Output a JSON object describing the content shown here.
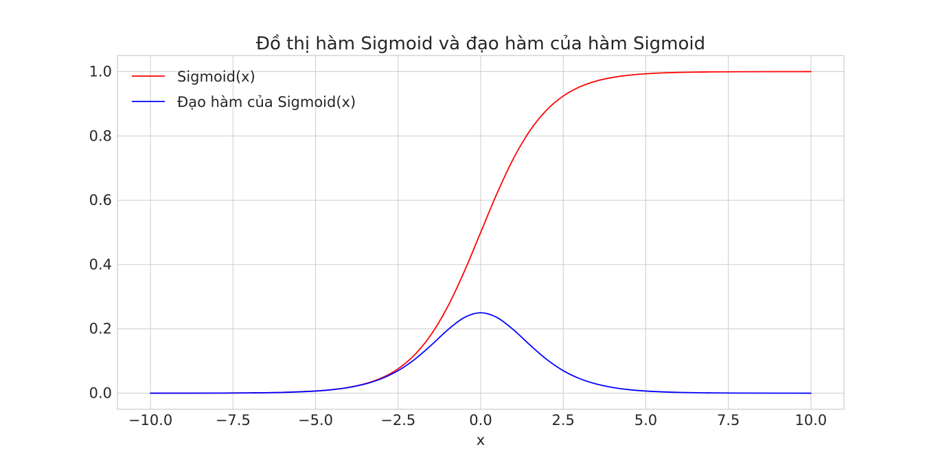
{
  "chart_data": {
    "type": "line",
    "title": "Đồ thị hàm Sigmoid và đạo hàm của hàm Sigmoid",
    "xlabel": "x",
    "ylabel": "",
    "xlim": [
      -11.0,
      11.0
    ],
    "ylim": [
      -0.05,
      1.05
    ],
    "x_ticks": [
      -10.0,
      -7.5,
      -5.0,
      -2.5,
      0.0,
      2.5,
      5.0,
      7.5,
      10.0
    ],
    "x_tick_labels": [
      "−10.0",
      "−7.5",
      "−5.0",
      "−2.5",
      "0.0",
      "2.5",
      "5.0",
      "7.5",
      "10.0"
    ],
    "y_ticks": [
      0.0,
      0.2,
      0.4,
      0.6,
      0.8,
      1.0
    ],
    "y_tick_labels": [
      "0.0",
      "0.2",
      "0.4",
      "0.6",
      "0.8",
      "1.0"
    ],
    "grid": true,
    "legend_position": "top-left",
    "x": [
      -10,
      -9,
      -8,
      -7,
      -6,
      -5,
      -4.5,
      -4,
      -3.5,
      -3,
      -2.5,
      -2,
      -1.5,
      -1,
      -0.5,
      0,
      0.5,
      1,
      1.5,
      2,
      2.5,
      3,
      3.5,
      4,
      4.5,
      5,
      6,
      7,
      8,
      9,
      10
    ],
    "series": [
      {
        "name": "Sigmoid(x)",
        "color": "#ff0000",
        "values": [
          0.0,
          0.0001,
          0.0003,
          0.0009,
          0.0025,
          0.0067,
          0.011,
          0.018,
          0.0293,
          0.0474,
          0.0759,
          0.1192,
          0.1824,
          0.2689,
          0.3775,
          0.5,
          0.6225,
          0.7311,
          0.8176,
          0.8808,
          0.9241,
          0.9526,
          0.9707,
          0.982,
          0.989,
          0.9933,
          0.9975,
          0.9991,
          0.9997,
          0.9999,
          1.0
        ]
      },
      {
        "name": "Đạo hàm của Sigmoid(x)",
        "color": "#0000ff",
        "values": [
          0.0,
          0.0001,
          0.0003,
          0.0009,
          0.0025,
          0.0066,
          0.0109,
          0.0177,
          0.0285,
          0.0452,
          0.0701,
          0.105,
          0.1491,
          0.1966,
          0.235,
          0.25,
          0.235,
          0.1966,
          0.1491,
          0.105,
          0.0701,
          0.0452,
          0.0285,
          0.0177,
          0.0109,
          0.0066,
          0.0025,
          0.0009,
          0.0003,
          0.0001,
          0.0
        ]
      }
    ]
  }
}
